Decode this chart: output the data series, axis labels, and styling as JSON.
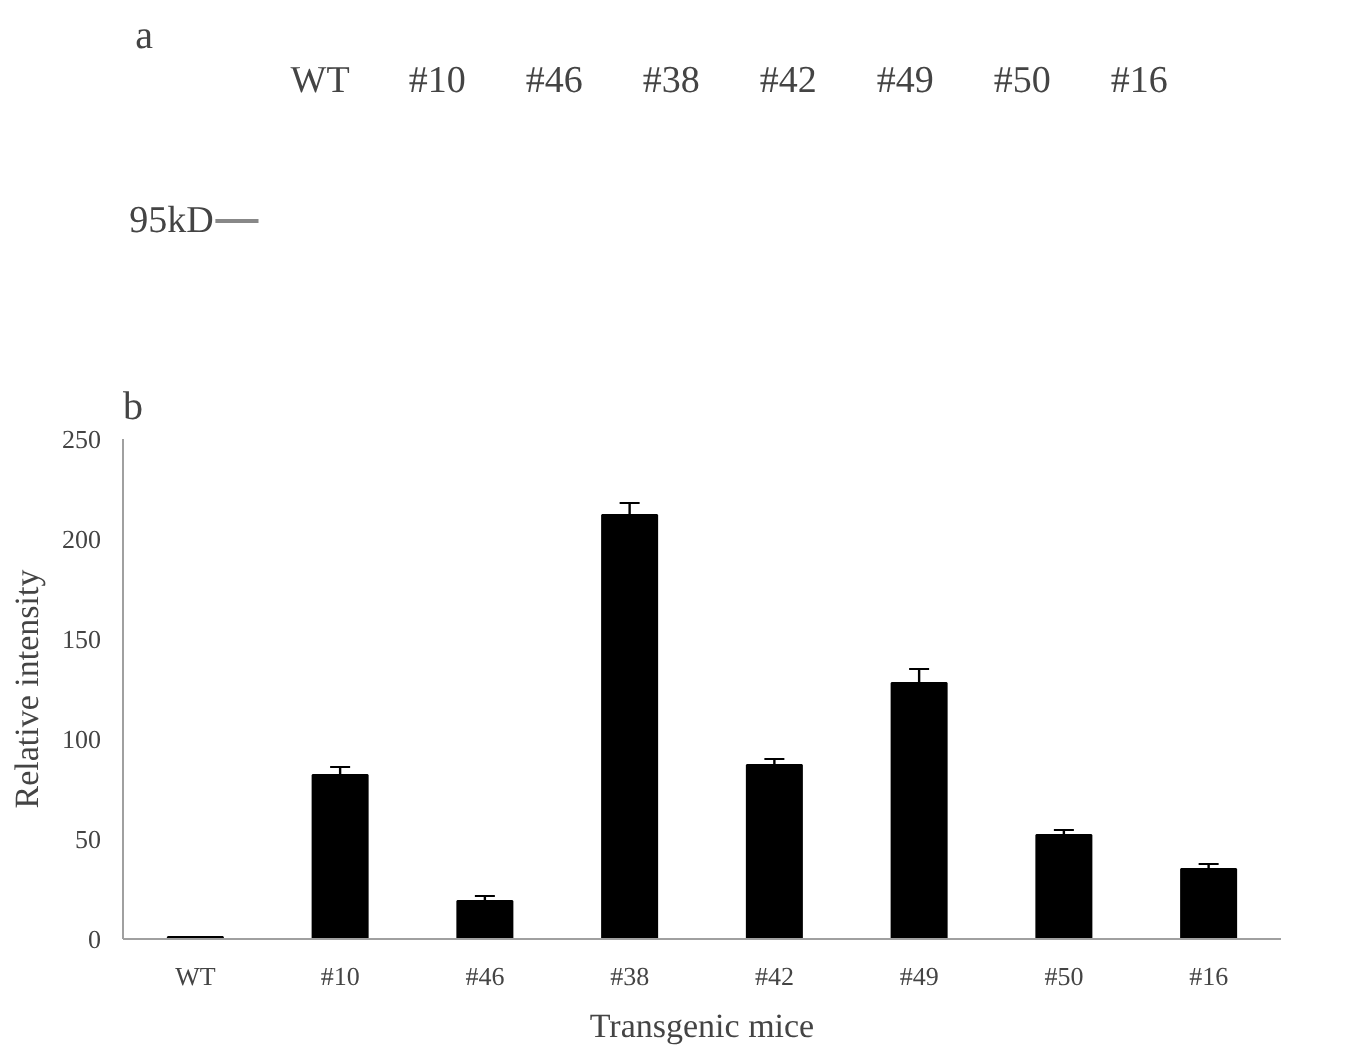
{
  "chart_data": [
    {
      "type": "other",
      "title": "a",
      "categories": [
        "WT",
        "#10",
        "#46",
        "#38",
        "#42",
        "#49",
        "#50",
        "#16"
      ],
      "annotations": [
        "95kD"
      ]
    },
    {
      "type": "bar",
      "title": "b",
      "xlabel": "Transgenic mice",
      "ylabel": "Relative intensity",
      "categories": [
        "WT",
        "#10",
        "#46",
        "#38",
        "#42",
        "#49",
        "#50",
        "#16"
      ],
      "values": [
        1,
        82,
        19,
        212,
        87,
        128,
        52,
        35
      ],
      "errors": [
        null,
        4,
        2.5,
        6,
        3,
        7,
        2.5,
        2.5
      ],
      "color": "#000000",
      "ylim": [
        0,
        250
      ],
      "yticks": [
        0,
        50,
        100,
        150,
        200,
        250
      ],
      "grid": false
    }
  ]
}
